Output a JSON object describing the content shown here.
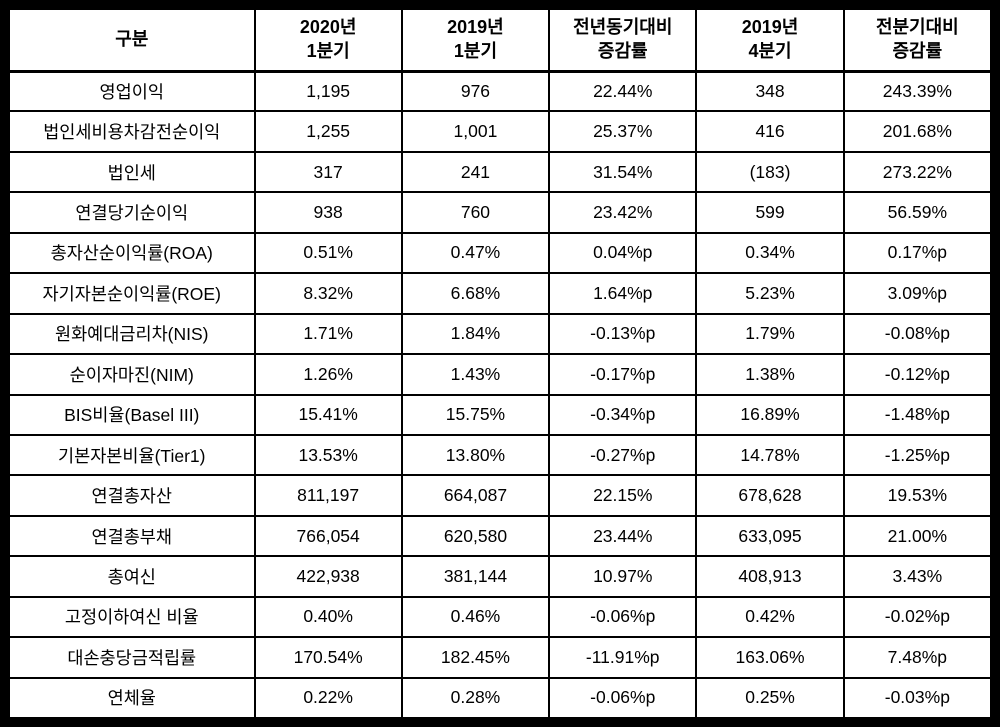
{
  "table": {
    "headers": [
      "구분",
      "2020년\n1분기",
      "2019년\n1분기",
      "전년동기대비\n증감률",
      "2019년\n4분기",
      "전분기대비\n증감률"
    ],
    "rows": [
      {
        "label": "영업이익",
        "values": [
          "1,195",
          "976",
          "22.44%",
          "348",
          "243.39%"
        ]
      },
      {
        "label": "법인세비용차감전순이익",
        "values": [
          "1,255",
          "1,001",
          "25.37%",
          "416",
          "201.68%"
        ]
      },
      {
        "label": "법인세",
        "values": [
          "317",
          "241",
          "31.54%",
          "(183)",
          "273.22%"
        ]
      },
      {
        "label": "연결당기순이익",
        "values": [
          "938",
          "760",
          "23.42%",
          "599",
          "56.59%"
        ]
      },
      {
        "label": "총자산순이익률(ROA)",
        "values": [
          "0.51%",
          "0.47%",
          "0.04%p",
          "0.34%",
          "0.17%p"
        ]
      },
      {
        "label": "자기자본순이익률(ROE)",
        "values": [
          "8.32%",
          "6.68%",
          "1.64%p",
          "5.23%",
          "3.09%p"
        ]
      },
      {
        "label": "원화예대금리차(NIS)",
        "values": [
          "1.71%",
          "1.84%",
          "-0.13%p",
          "1.79%",
          "-0.08%p"
        ]
      },
      {
        "label": "순이자마진(NIM)",
        "values": [
          "1.26%",
          "1.43%",
          "-0.17%p",
          "1.38%",
          "-0.12%p"
        ]
      },
      {
        "label": "BIS비율(Basel III)",
        "values": [
          "15.41%",
          "15.75%",
          "-0.34%p",
          "16.89%",
          "-1.48%p"
        ]
      },
      {
        "label": "기본자본비율(Tier1)",
        "values": [
          "13.53%",
          "13.80%",
          "-0.27%p",
          "14.78%",
          "-1.25%p"
        ]
      },
      {
        "label": "연결총자산",
        "values": [
          "811,197",
          "664,087",
          "22.15%",
          "678,628",
          "19.53%"
        ]
      },
      {
        "label": "연결총부채",
        "values": [
          "766,054",
          "620,580",
          "23.44%",
          "633,095",
          "21.00%"
        ]
      },
      {
        "label": "총여신",
        "values": [
          "422,938",
          "381,144",
          "10.97%",
          "408,913",
          "3.43%"
        ]
      },
      {
        "label": "고정이하여신 비율",
        "values": [
          "0.40%",
          "0.46%",
          "-0.06%p",
          "0.42%",
          "-0.02%p"
        ]
      },
      {
        "label": "대손충당금적립률",
        "values": [
          "170.54%",
          "182.45%",
          "-11.91%p",
          "163.06%",
          "7.48%p"
        ]
      },
      {
        "label": "연체율",
        "values": [
          "0.22%",
          "0.28%",
          "-0.06%p",
          "0.25%",
          "-0.03%p"
        ]
      }
    ]
  }
}
